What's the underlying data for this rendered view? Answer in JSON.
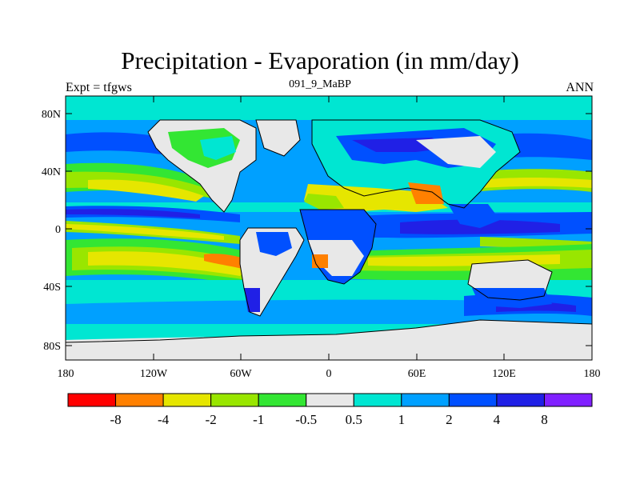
{
  "title": "Precipitation - Evaporation (in mm/day)",
  "subtitle_left": "Expt = tfgws",
  "subtitle_center": "091_9_MaBP",
  "subtitle_right": "ANN",
  "lat_ticks": [
    "80N",
    "40N",
    "0",
    "40S",
    "80S"
  ],
  "lon_ticks": [
    "180",
    "120W",
    "60W",
    "0",
    "60E",
    "120E",
    "180"
  ],
  "colorbar": {
    "colors": [
      "#ff0000",
      "#ff8000",
      "#e6e600",
      "#99e600",
      "#33e633",
      "#e8e8e8",
      "#00e6d2",
      "#00a0ff",
      "#0050ff",
      "#2020e6",
      "#8020ff"
    ],
    "labels": [
      "-8",
      "-4",
      "-2",
      "-1",
      "-0.5",
      "0.5",
      "1",
      "2",
      "4",
      "8"
    ]
  }
}
